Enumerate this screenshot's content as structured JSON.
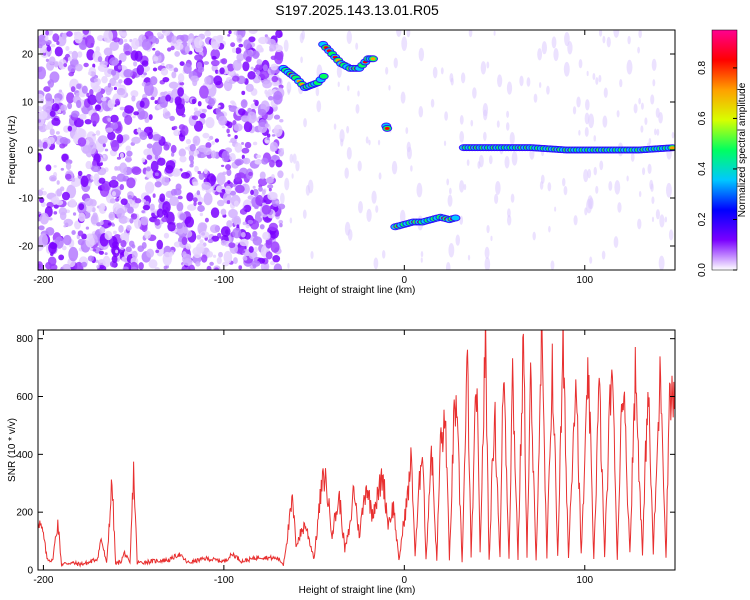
{
  "figure": {
    "title": "S197.2025.143.13.01.R05"
  },
  "chart_data": [
    {
      "type": "heatmap",
      "xlabel": "Height of straight line (km)",
      "ylabel": "Frequency (Hz)",
      "xlim": [
        -203,
        150
      ],
      "ylim": [
        -25,
        25
      ],
      "x_ticks": [
        -200,
        -100,
        0,
        100
      ],
      "y_ticks": [
        -20,
        -10,
        0,
        10,
        20
      ],
      "colorbar": {
        "label": "Normalized spectral amplitude",
        "range": [
          0,
          0.95
        ],
        "ticks": [
          0.0,
          0.2,
          0.4,
          0.6,
          0.8
        ],
        "colormap": [
          "#ffffff",
          "#7a00ff",
          "#0000ff",
          "#00c8ff",
          "#00ff60",
          "#d8ff00",
          "#ffa000",
          "#ff0000",
          "#ff0090"
        ]
      },
      "traces": [
        {
          "x": [
            -67,
            -60,
            -55,
            -48,
            -43
          ],
          "freq": [
            17,
            15,
            13,
            14,
            16
          ]
        },
        {
          "x": [
            -45,
            -40,
            -35,
            -30,
            -25,
            -20,
            -16
          ],
          "freq": [
            22,
            20,
            18,
            17,
            17,
            19,
            19
          ]
        },
        {
          "x": [
            -10,
            -9
          ],
          "freq": [
            5,
            4
          ]
        },
        {
          "x": [
            -5,
            0,
            5,
            10,
            15,
            20,
            25,
            30
          ],
          "freq": [
            -16,
            -15.5,
            -15,
            -15,
            -14.5,
            -14,
            -14.5,
            -14
          ]
        },
        {
          "x": [
            33,
            50,
            70,
            90,
            110,
            130,
            150
          ],
          "freq": [
            0.5,
            0.5,
            0.5,
            0,
            0,
            0,
            0.5
          ]
        }
      ]
    },
    {
      "type": "line",
      "xlabel": "Height of straight line (km)",
      "ylabel": "SNR (10 * v/v)",
      "xlim": [
        -203,
        150
      ],
      "ylim": [
        0,
        830
      ],
      "x_ticks": [
        -200,
        -100,
        0,
        100
      ],
      "y_ticks": [
        0,
        200,
        400,
        600,
        800
      ],
      "series": [
        {
          "color": "#e83030",
          "points": [
            [
              -203,
              180
            ],
            [
              -200,
              120
            ],
            [
              -198,
              40
            ],
            [
              -195,
              30
            ],
            [
              -192,
              165
            ],
            [
              -190,
              20
            ],
            [
              -185,
              25
            ],
            [
              -180,
              20
            ],
            [
              -175,
              25
            ],
            [
              -170,
              40
            ],
            [
              -168,
              110
            ],
            [
              -165,
              20
            ],
            [
              -162,
              305
            ],
            [
              -160,
              20
            ],
            [
              -157,
              30
            ],
            [
              -155,
              60
            ],
            [
              -152,
              20
            ],
            [
              -150,
              345
            ],
            [
              -148,
              25
            ],
            [
              -140,
              30
            ],
            [
              -130,
              35
            ],
            [
              -125,
              55
            ],
            [
              -120,
              25
            ],
            [
              -110,
              40
            ],
            [
              -100,
              30
            ],
            [
              -95,
              55
            ],
            [
              -90,
              30
            ],
            [
              -80,
              45
            ],
            [
              -70,
              40
            ],
            [
              -67,
              20
            ],
            [
              -62,
              240
            ],
            [
              -60,
              90
            ],
            [
              -55,
              160
            ],
            [
              -50,
              40
            ],
            [
              -46,
              280
            ],
            [
              -44,
              330
            ],
            [
              -40,
              130
            ],
            [
              -36,
              250
            ],
            [
              -33,
              70
            ],
            [
              -30,
              150
            ],
            [
              -28,
              290
            ],
            [
              -25,
              120
            ],
            [
              -21,
              300
            ],
            [
              -18,
              200
            ],
            [
              -15,
              250
            ],
            [
              -12,
              330
            ],
            [
              -9,
              160
            ],
            [
              -6,
              220
            ],
            [
              -3,
              30
            ],
            [
              0,
              180
            ],
            [
              2,
              260
            ],
            [
              4,
              390
            ],
            [
              6,
              50
            ],
            [
              8,
              260
            ],
            [
              10,
              460
            ],
            [
              12,
              30
            ],
            [
              15,
              430
            ],
            [
              18,
              30
            ],
            [
              20,
              440
            ],
            [
              23,
              500
            ],
            [
              25,
              30
            ],
            [
              28,
              600
            ],
            [
              30,
              380
            ],
            [
              32,
              30
            ],
            [
              35,
              720
            ],
            [
              37,
              40
            ],
            [
              40,
              660
            ],
            [
              42,
              60
            ],
            [
              45,
              800
            ],
            [
              47,
              30
            ],
            [
              50,
              560
            ],
            [
              53,
              40
            ],
            [
              55,
              720
            ],
            [
              58,
              40
            ],
            [
              60,
              680
            ],
            [
              63,
              40
            ],
            [
              66,
              790
            ],
            [
              68,
              50
            ],
            [
              70,
              650
            ],
            [
              73,
              30
            ],
            [
              76,
              800
            ],
            [
              79,
              40
            ],
            [
              82,
              720
            ],
            [
              85,
              50
            ],
            [
              88,
              760
            ],
            [
              91,
              40
            ],
            [
              95,
              700
            ],
            [
              98,
              50
            ],
            [
              102,
              680
            ],
            [
              105,
              40
            ],
            [
              108,
              640
            ],
            [
              111,
              50
            ],
            [
              115,
              740
            ],
            [
              118,
              40
            ],
            [
              121,
              700
            ],
            [
              125,
              60
            ],
            [
              128,
              690
            ],
            [
              132,
              50
            ],
            [
              135,
              650
            ],
            [
              138,
              60
            ],
            [
              142,
              700
            ],
            [
              145,
              40
            ],
            [
              147,
              640
            ],
            [
              150,
              560
            ]
          ]
        }
      ]
    }
  ]
}
